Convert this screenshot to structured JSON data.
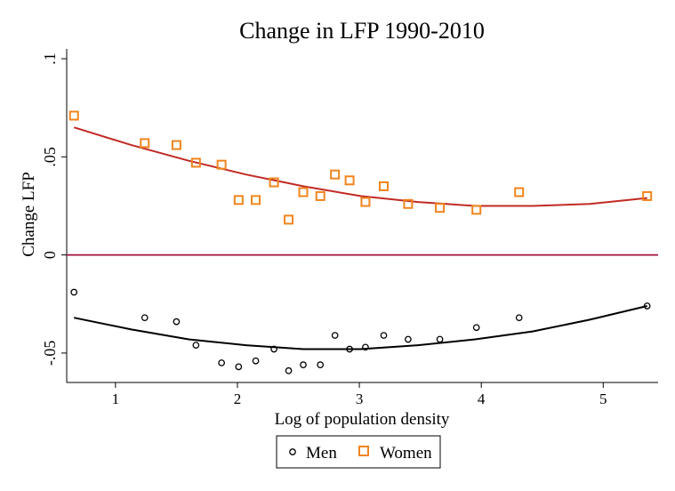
{
  "chart_data": {
    "type": "scatter",
    "title": "Change in LFP 1990-2010",
    "xlabel": "Log of population density",
    "ylabel": "Change LFP",
    "xlim": [
      0.6,
      5.45
    ],
    "ylim": [
      -0.065,
      0.105
    ],
    "x_ticks": [
      1,
      2,
      3,
      4,
      5
    ],
    "x_tick_labels": [
      "1",
      "2",
      "3",
      "4",
      "5"
    ],
    "y_ticks": [
      -0.05,
      0,
      0.05,
      0.1
    ],
    "y_tick_labels": [
      "-.05",
      "0",
      ".05",
      ".1"
    ],
    "reference_line": {
      "y": 0,
      "color": "#a3123f"
    },
    "grid": false,
    "legend": {
      "position": "bottom",
      "entries": [
        "Men",
        "Women"
      ]
    },
    "series": [
      {
        "name": "Women",
        "marker": "hollow-square",
        "color": "#f0851e",
        "fit_color": "#c12a25",
        "x": [
          0.66,
          1.24,
          1.5,
          1.66,
          1.87,
          2.01,
          2.15,
          2.3,
          2.42,
          2.54,
          2.68,
          2.8,
          2.92,
          3.05,
          3.2,
          3.4,
          3.66,
          3.96,
          4.31,
          5.36
        ],
        "y": [
          0.071,
          0.057,
          0.056,
          0.047,
          0.046,
          0.028,
          0.028,
          0.037,
          0.018,
          0.032,
          0.03,
          0.041,
          0.038,
          0.027,
          0.035,
          0.026,
          0.024,
          0.023,
          0.032,
          0.03
        ],
        "fit": {
          "type": "quadratic",
          "x": [
            0.66,
            1.13,
            1.6,
            2.07,
            2.54,
            3.01,
            3.48,
            3.95,
            4.42,
            4.89,
            5.36
          ],
          "y": [
            0.065,
            0.056,
            0.048,
            0.041,
            0.035,
            0.03,
            0.027,
            0.025,
            0.025,
            0.026,
            0.029
          ]
        }
      },
      {
        "name": "Men",
        "marker": "hollow-circle",
        "color": "#000000",
        "fit_color": "#000000",
        "x": [
          0.66,
          1.24,
          1.5,
          1.66,
          1.87,
          2.01,
          2.15,
          2.3,
          2.42,
          2.54,
          2.68,
          2.8,
          2.92,
          3.05,
          3.2,
          3.4,
          3.66,
          3.96,
          4.31,
          5.36
        ],
        "y": [
          -0.019,
          -0.032,
          -0.034,
          -0.046,
          -0.055,
          -0.057,
          -0.054,
          -0.048,
          -0.059,
          -0.056,
          -0.056,
          -0.041,
          -0.048,
          -0.047,
          -0.041,
          -0.043,
          -0.043,
          -0.037,
          -0.032,
          -0.026
        ],
        "fit": {
          "type": "quadratic",
          "x": [
            0.66,
            1.13,
            1.6,
            2.07,
            2.54,
            3.01,
            3.48,
            3.95,
            4.42,
            4.89,
            5.36
          ],
          "y": [
            -0.032,
            -0.038,
            -0.043,
            -0.046,
            -0.048,
            -0.048,
            -0.046,
            -0.043,
            -0.039,
            -0.033,
            -0.026
          ]
        }
      }
    ]
  }
}
